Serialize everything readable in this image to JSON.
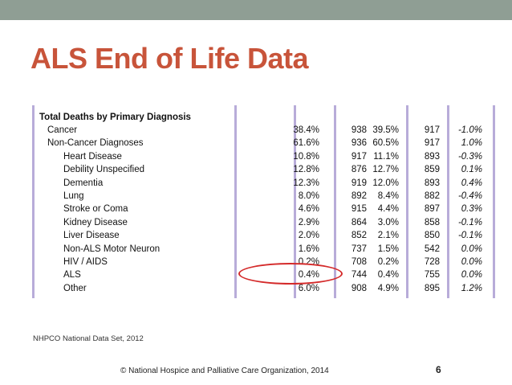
{
  "slide": {
    "title": "ALS End of Life Data",
    "source": "NHPCO National Data Set, 2012",
    "copyright": "© National Hospice and Palliative Care Organization, 2014",
    "page_number": "6",
    "colors": {
      "title": "#c8543a",
      "top_bar": "#8f9e94",
      "circle": "#d42a2a",
      "column_lines": "#b8acd9"
    }
  },
  "table": {
    "title": "Total Deaths by Primary Diagnosis",
    "rows": [
      {
        "name": "Cancer",
        "pct1": "38.4%",
        "n1": "938",
        "pct2": "39.5%",
        "n2": "917",
        "diff": "-1.0%"
      },
      {
        "name": "Non-Cancer Diagnoses",
        "pct1": "61.6%",
        "n1": "936",
        "pct2": "60.5%",
        "n2": "917",
        "diff": "1.0%"
      },
      {
        "name": "Heart Disease",
        "pct1": "10.8%",
        "n1": "917",
        "pct2": "11.1%",
        "n2": "893",
        "diff": "-0.3%"
      },
      {
        "name": "Debility Unspecified",
        "pct1": "12.8%",
        "n1": "876",
        "pct2": "12.7%",
        "n2": "859",
        "diff": "0.1%"
      },
      {
        "name": "Dementia",
        "pct1": "12.3%",
        "n1": "919",
        "pct2": "12.0%",
        "n2": "893",
        "diff": "0.4%"
      },
      {
        "name": "Lung",
        "pct1": "8.0%",
        "n1": "892",
        "pct2": "8.4%",
        "n2": "882",
        "diff": "-0.4%"
      },
      {
        "name": "Stroke or Coma",
        "pct1": "4.6%",
        "n1": "915",
        "pct2": "4.4%",
        "n2": "897",
        "diff": "0.3%"
      },
      {
        "name": "Kidney Disease",
        "pct1": "2.9%",
        "n1": "864",
        "pct2": "3.0%",
        "n2": "858",
        "diff": "-0.1%"
      },
      {
        "name": "Liver Disease",
        "pct1": "2.0%",
        "n1": "852",
        "pct2": "2.1%",
        "n2": "850",
        "diff": "-0.1%"
      },
      {
        "name": "Non-ALS Motor Neuron",
        "pct1": "1.6%",
        "n1": "737",
        "pct2": "1.5%",
        "n2": "542",
        "diff": "0.0%"
      },
      {
        "name": "HIV / AIDS",
        "pct1": "0.2%",
        "n1": "708",
        "pct2": "0.2%",
        "n2": "728",
        "diff": "0.0%"
      },
      {
        "name": "ALS",
        "pct1": "0.4%",
        "n1": "744",
        "pct2": "0.4%",
        "n2": "755",
        "diff": "0.0%"
      },
      {
        "name": "Other",
        "pct1": "6.0%",
        "n1": "908",
        "pct2": "4.9%",
        "n2": "895",
        "diff": "1.2%"
      }
    ]
  }
}
